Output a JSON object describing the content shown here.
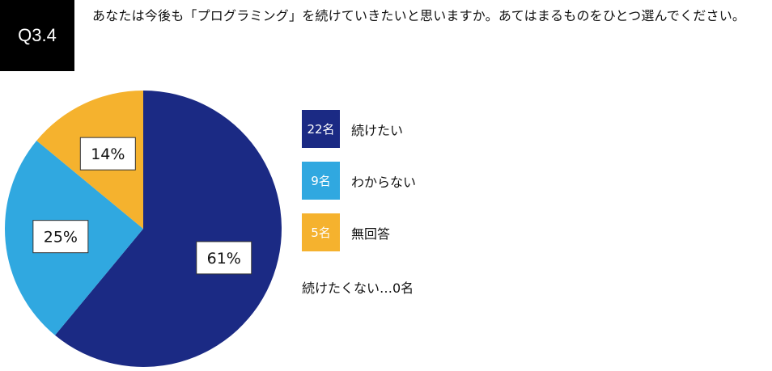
{
  "question": {
    "number": "Q3.4",
    "text": "あなたは今後も「プログラミング」を続けていきたいと思いますか。あてはまるものをひとつ選んでください。"
  },
  "chart_data": {
    "type": "pie",
    "categories": [
      "続けたい",
      "わからない",
      "無回答"
    ],
    "values": [
      61,
      25,
      14
    ],
    "value_labels": [
      "61%",
      "25%",
      "14%"
    ],
    "counts": [
      "22名",
      "9名",
      "5名"
    ],
    "colors": [
      "#1b2a84",
      "#30a8e0",
      "#f5b22e"
    ],
    "start_angle": "12 o'clock",
    "direction": "clockwise",
    "legend_position": "right"
  },
  "legend": [
    {
      "count": "22名",
      "label": "続けたい",
      "color": "#1b2a84"
    },
    {
      "count": "9名",
      "label": "わからない",
      "color": "#30a8e0"
    },
    {
      "count": "5名",
      "label": "無回答",
      "color": "#f5b22e"
    }
  ],
  "footnote": "続けたくない…0名"
}
